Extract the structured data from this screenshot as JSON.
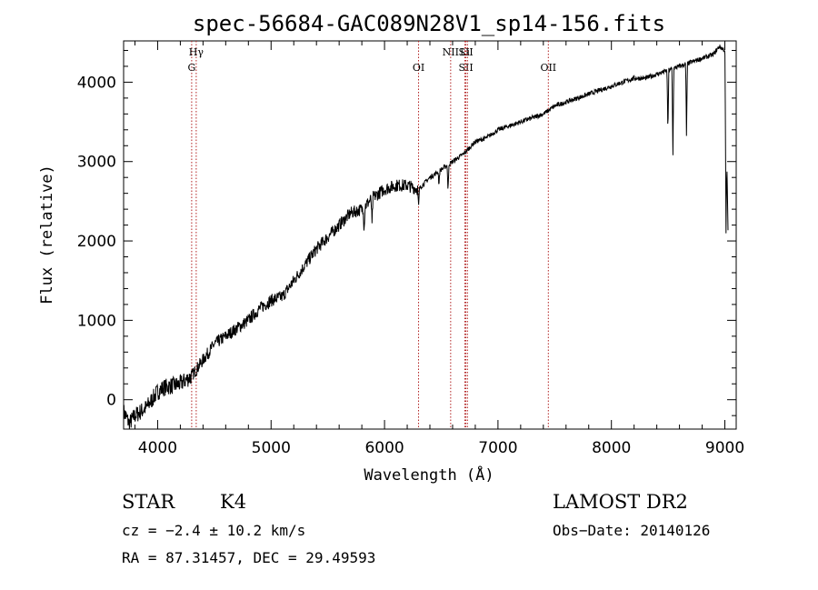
{
  "chart_data": {
    "type": "line",
    "title": "spec-56684-GAC089N28V1_sp14-156.fits",
    "xlabel": "Wavelength (Å)",
    "ylabel": "Flux (relative)",
    "xlim": [
      3700,
      9100
    ],
    "ylim": [
      -370,
      4520
    ],
    "x_ticks": [
      4000,
      5000,
      6000,
      7000,
      8000,
      9000
    ],
    "y_ticks": [
      0,
      1000,
      2000,
      3000,
      4000
    ],
    "grid": false,
    "spectrum": {
      "x": [
        3700,
        3750,
        3800,
        3850,
        3900,
        3950,
        4000,
        4050,
        4100,
        4150,
        4200,
        4250,
        4300,
        4350,
        4400,
        4500,
        4600,
        4700,
        4800,
        4900,
        5000,
        5100,
        5150,
        5200,
        5300,
        5400,
        5500,
        5600,
        5700,
        5800,
        5900,
        6000,
        6100,
        6200,
        6300,
        6400,
        6500,
        6600,
        6700,
        6800,
        6900,
        7000,
        7100,
        7200,
        7300,
        7400,
        7500,
        7600,
        7700,
        7800,
        7900,
        8000,
        8100,
        8200,
        8300,
        8400,
        8500,
        8600,
        8700,
        8800,
        8900,
        8950,
        9000,
        9030
      ],
      "y": [
        -150,
        -300,
        -200,
        -150,
        -100,
        0,
        100,
        150,
        170,
        180,
        200,
        250,
        300,
        400,
        500,
        700,
        800,
        900,
        1000,
        1150,
        1250,
        1300,
        1400,
        1500,
        1700,
        1900,
        2050,
        2200,
        2350,
        2400,
        2550,
        2650,
        2700,
        2700,
        2650,
        2800,
        2900,
        3000,
        3100,
        3250,
        3300,
        3400,
        3450,
        3500,
        3550,
        3600,
        3700,
        3750,
        3800,
        3850,
        3900,
        3950,
        4000,
        4050,
        4050,
        4100,
        4150,
        4200,
        4250,
        4300,
        4350,
        4450,
        4400,
        2000
      ]
    },
    "absorption_dips": [
      {
        "x": 6300,
        "depth": 250
      },
      {
        "x": 6480,
        "depth": 180
      },
      {
        "x": 6560,
        "depth": 350
      },
      {
        "x": 5820,
        "depth": 300
      },
      {
        "x": 5890,
        "depth": 350
      },
      {
        "x": 8498,
        "depth": 800
      },
      {
        "x": 8542,
        "depth": 1100
      },
      {
        "x": 8662,
        "depth": 900
      },
      {
        "x": 9010,
        "depth": 1500
      }
    ],
    "line_markers": [
      {
        "x": 4300,
        "upper": "",
        "lower": "G"
      },
      {
        "x": 4340,
        "upper": "Hγ",
        "lower": ""
      },
      {
        "x": 6300,
        "upper": "",
        "lower": "OI"
      },
      {
        "x": 6583,
        "upper": "NII",
        "lower": ""
      },
      {
        "x": 6708,
        "upper": "Li",
        "lower": ""
      },
      {
        "x": 6717,
        "upper": "SII",
        "lower": "SII"
      },
      {
        "x": 6731,
        "upper": "",
        "lower": ""
      },
      {
        "x": 7444,
        "upper": "",
        "lower": "OII"
      }
    ]
  },
  "info": {
    "class": "STAR",
    "subclass": "K4",
    "survey": "LAMOST DR2",
    "cz": "cz = −2.4 ± 10.2 km/s",
    "obs_date": "Obs−Date: 20140126",
    "coords": "RA =  87.31457, DEC =  29.49593"
  },
  "colors": {
    "spectrum": "#000000",
    "marker_line": "#b22222",
    "axis": "#000000",
    "background": "#ffffff"
  }
}
